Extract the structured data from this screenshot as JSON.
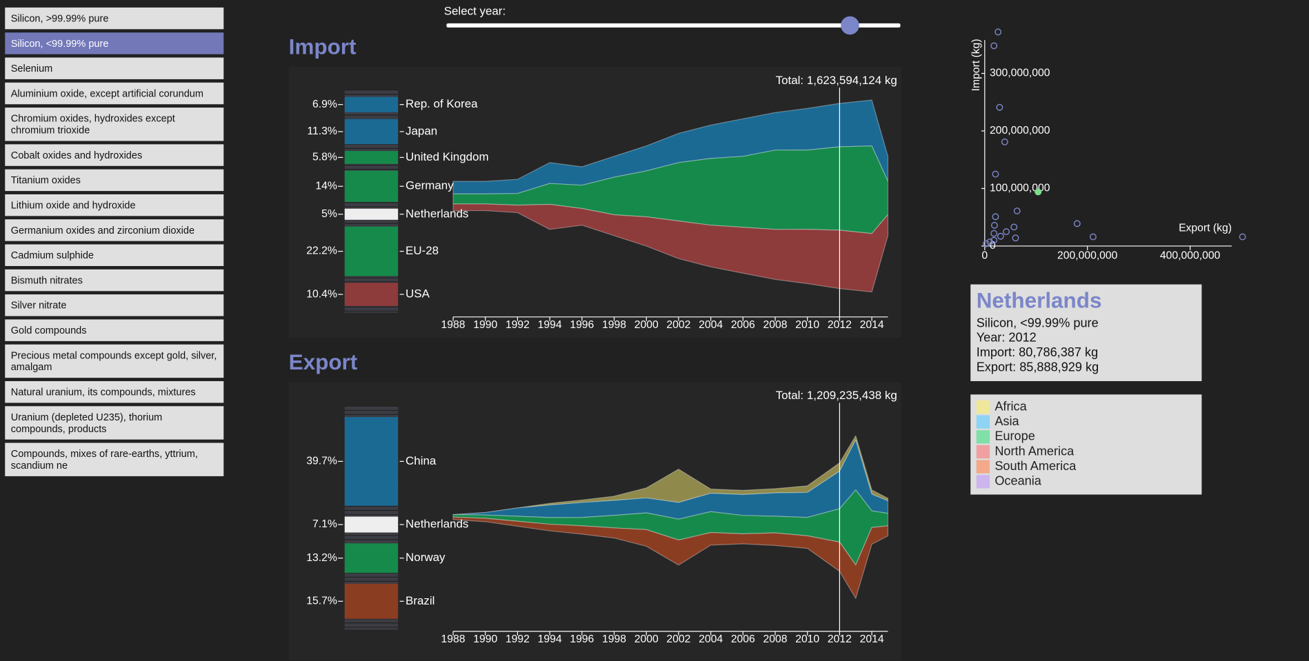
{
  "sidebar": {
    "items": [
      "Silicon, >99.99% pure",
      "Silicon, <99.99% pure",
      "Selenium",
      "Aluminium oxide, except artificial corundum",
      "Chromium oxides, hydroxides except chromium trioxide",
      "Cobalt oxides and hydroxides",
      "Titanium oxides",
      "Lithium oxide and hydroxide",
      "Germanium oxides and zirconium dioxide",
      "Cadmium sulphide",
      "Bismuth nitrates",
      "Silver nitrate",
      "Gold compounds",
      "Precious metal compounds except gold, silver, amalgam",
      "Natural uranium, its compounds, mixtures",
      "Uranium (depleted U235), thorium compounds, products",
      "Compounds, mixes of rare-earths, yttrium, scandium ne"
    ],
    "selected": 1
  },
  "slider": {
    "label": "Select year:",
    "min": 1988,
    "max": 2015,
    "value": 2012
  },
  "chart_data": [
    {
      "type": "streamgraph",
      "title": "Import",
      "total_label": "Total: 1,623,594,124 kg",
      "x": [
        1988,
        1990,
        1992,
        1994,
        1996,
        1998,
        2000,
        2002,
        2004,
        2006,
        2008,
        2010,
        2012,
        2014,
        2015
      ],
      "xlim": [
        1988,
        2015
      ],
      "xticks": [
        1988,
        1990,
        1992,
        1994,
        1996,
        1998,
        2000,
        2002,
        2004,
        2006,
        2008,
        2010,
        2012,
        2014
      ],
      "series": [
        {
          "name": "Asia",
          "color": "#1b6a94",
          "values": [
            110000000,
            110000000,
            124000000,
            183000000,
            161000000,
            183000000,
            219000000,
            256000000,
            292000000,
            329000000,
            329000000,
            365000000,
            380000000,
            402000000,
            219000000
          ]
        },
        {
          "name": "Europe",
          "color": "#168a4b",
          "values": [
            88000000,
            88000000,
            102000000,
            183000000,
            204000000,
            329000000,
            402000000,
            511000000,
            584000000,
            621000000,
            694000000,
            694000000,
            730000000,
            767000000,
            292000000
          ]
        },
        {
          "name": "North America",
          "color": "#8e3b3b",
          "values": [
            58000000,
            58000000,
            66000000,
            219000000,
            146000000,
            183000000,
            256000000,
            329000000,
            365000000,
            402000000,
            438000000,
            475000000,
            511000000,
            511000000,
            183000000
          ]
        }
      ],
      "shares": {
        "countries": [
          "Rep. of Korea",
          "Japan",
          "United Kingdom",
          "Germany",
          "Netherlands",
          "EU-28",
          "USA"
        ],
        "values": [
          6.9,
          11.3,
          5.8,
          14,
          5,
          22.2,
          10.4
        ],
        "value_labels": [
          "6.9%",
          "11.3%",
          "5.8%",
          "14%",
          "5%",
          "22.2%",
          "10.4%"
        ],
        "colors": [
          "#1b6a94",
          "#1b6a94",
          "#168a4b",
          "#168a4b",
          "#eeeeee",
          "#168a4b",
          "#8e3b3b"
        ]
      }
    },
    {
      "type": "streamgraph",
      "title": "Export",
      "total_label": "Total: 1,209,235,438 kg",
      "x": [
        1988,
        1990,
        1992,
        1994,
        1996,
        1998,
        2000,
        2002,
        2004,
        2006,
        2008,
        2010,
        2012,
        2013,
        2014,
        2015
      ],
      "xlim": [
        1988,
        2015
      ],
      "xticks": [
        1988,
        1990,
        1992,
        1994,
        1996,
        1998,
        2000,
        2002,
        2004,
        2006,
        2008,
        2010,
        2012,
        2014
      ],
      "series": [
        {
          "name": "Africa",
          "color": "#8f8a4c",
          "values": [
            0,
            0,
            0,
            19000000,
            28000000,
            47000000,
            112000000,
            372000000,
            47000000,
            47000000,
            47000000,
            74000000,
            93000000,
            47000000,
            47000000,
            28000000
          ]
        },
        {
          "name": "Asia",
          "color": "#1b6a94",
          "values": [
            0,
            28000000,
            93000000,
            140000000,
            167000000,
            167000000,
            167000000,
            186000000,
            205000000,
            233000000,
            260000000,
            279000000,
            419000000,
            558000000,
            186000000,
            140000000
          ]
        },
        {
          "name": "Europe",
          "color": "#168a4b",
          "values": [
            28000000,
            37000000,
            56000000,
            74000000,
            93000000,
            140000000,
            186000000,
            233000000,
            233000000,
            205000000,
            186000000,
            205000000,
            372000000,
            837000000,
            186000000,
            140000000
          ]
        },
        {
          "name": "South America",
          "color": "#8b3d22",
          "values": [
            28000000,
            37000000,
            56000000,
            74000000,
            93000000,
            112000000,
            186000000,
            279000000,
            140000000,
            112000000,
            140000000,
            140000000,
            326000000,
            372000000,
            186000000,
            112000000
          ]
        }
      ],
      "shares": {
        "countries": [
          "China",
          "Netherlands",
          "Norway",
          "Brazil"
        ],
        "values": [
          39.7,
          7.1,
          13.2,
          15.7
        ],
        "value_labels": [
          "39.7%",
          "7.1%",
          "13.2%",
          "15.7%"
        ],
        "colors": [
          "#1b6a94",
          "#eeeeee",
          "#168a4b",
          "#8b3d22"
        ]
      }
    },
    {
      "type": "scatter",
      "xlabel": "Export (kg)",
      "ylabel": "Import (kg)",
      "color": "#7b86c9",
      "highlight": 0,
      "highlight_color": "#7ddc8a",
      "x": [
        104000000,
        26000000,
        18000000,
        29000000,
        39000000,
        21000000,
        63000000,
        180000000,
        211000000,
        502000000,
        57000000,
        42000000,
        31000000,
        21000000,
        19000000,
        18000000,
        18000000,
        60000000,
        3000000,
        10000000
      ],
      "y": [
        94000000,
        372000000,
        348000000,
        241000000,
        181000000,
        125000000,
        61000000,
        39000000,
        16000000,
        16000000,
        33000000,
        25000000,
        17000000,
        51000000,
        36000000,
        22000000,
        10000000,
        14000000,
        4000000,
        7000000
      ],
      "xlim": [
        0,
        481000000
      ],
      "ylim": [
        0,
        358000000
      ],
      "xticks": [
        0,
        {
          "value": 200000000,
          "label": "200,000,000"
        },
        {
          "value": 400000000,
          "label": "400,000,000"
        }
      ],
      "yticks": [
        0,
        {
          "value": 100000000,
          "label": "100,000,000"
        },
        {
          "value": 200000000,
          "label": "200,000,000"
        },
        {
          "value": 300000000,
          "label": "300,000,000"
        }
      ]
    }
  ],
  "info": {
    "title": "Netherlands",
    "product": "Silicon, <99.99% pure",
    "year": "Year: 2012",
    "import": "Import: 80,786,387 kg",
    "export": "Export: 85,888,929 kg"
  },
  "legend": {
    "items": [
      {
        "name": "Africa",
        "color": "#efe79a"
      },
      {
        "name": "Asia",
        "color": "#8fd3f5"
      },
      {
        "name": "Europe",
        "color": "#7fe0a8"
      },
      {
        "name": "North America",
        "color": "#f0a0a0"
      },
      {
        "name": "South America",
        "color": "#f4a98a"
      },
      {
        "name": "Oceania",
        "color": "#cdb6ee"
      }
    ]
  }
}
